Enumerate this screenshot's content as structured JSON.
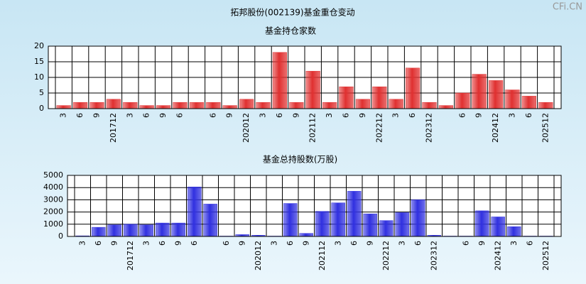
{
  "title": "拓邦股份(002139)基金重仓变动",
  "watermark": "CFi.CN",
  "chart_data": [
    {
      "type": "bar",
      "title": "基金持仓家数",
      "categories": [
        "3",
        "6",
        "9",
        "201712",
        "3",
        "6",
        "9",
        "6",
        null,
        "6",
        "9",
        "202012",
        "3",
        "6",
        "9",
        "202112",
        "3",
        "6",
        "9",
        "202212",
        "3",
        "6",
        "202312",
        null,
        "6",
        "9",
        "202412",
        "3",
        "6",
        "202512"
      ],
      "values": [
        1,
        2,
        2,
        3,
        2,
        1,
        1,
        2,
        2,
        2,
        1,
        3,
        2,
        18,
        2,
        12,
        2,
        7,
        3,
        7,
        3,
        13,
        2,
        1,
        5,
        11,
        9,
        6,
        4,
        2
      ],
      "color": "#e03030",
      "ylim": [
        0,
        20
      ],
      "yticks": [
        0,
        5,
        10,
        15,
        20
      ],
      "grid": true
    },
    {
      "type": "bar",
      "title": "基金总持股数(万股)",
      "categories": [
        "3",
        "6",
        "9",
        "201712",
        "3",
        "6",
        "9",
        "6",
        null,
        "6",
        "9",
        "202012",
        "3",
        "6",
        "9",
        "202112",
        "3",
        "6",
        "9",
        "202212",
        "3",
        "6",
        "202312",
        null,
        "6",
        "9",
        "202412",
        "3",
        "6",
        "202512"
      ],
      "values": [
        50,
        750,
        950,
        1000,
        950,
        1100,
        1100,
        4050,
        2650,
        30,
        150,
        100,
        30,
        2700,
        250,
        2050,
        2750,
        3700,
        1850,
        1300,
        1950,
        3000,
        100,
        30,
        30,
        2100,
        1600,
        800,
        30,
        30
      ],
      "color": "#3030e0",
      "ylim": [
        0,
        5000
      ],
      "yticks": [
        0,
        1000,
        2000,
        3000,
        4000,
        5000
      ],
      "grid": true
    }
  ]
}
